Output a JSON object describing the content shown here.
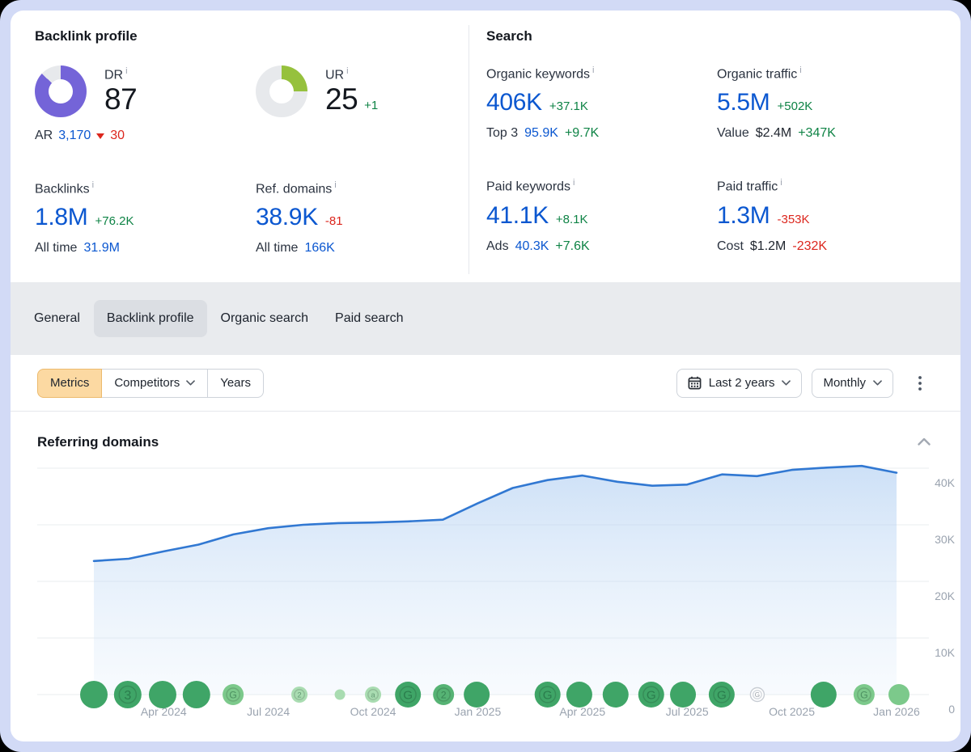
{
  "icons": {
    "info": "i"
  },
  "colors": {
    "donut_purple": "#7464d8",
    "donut_lime": "#96c13d",
    "donut_track": "#e7e9ec",
    "accent_blue": "#0b57d0",
    "positive_green": "#0e8345",
    "negative_red": "#dc261d",
    "peach_active": "#fcd9a2"
  },
  "backlink_profile": {
    "title": "Backlink profile",
    "dr": {
      "label": "DR",
      "value": "87",
      "percent": 87,
      "ar_label": "AR",
      "ar_value": "3,170",
      "ar_change": "30"
    },
    "ur": {
      "label": "UR",
      "value": "25",
      "percent": 25,
      "change": "+1"
    },
    "backlinks": {
      "label": "Backlinks",
      "value": "1.8M",
      "change": "+76.2K",
      "sub_label": "All time",
      "sub_value": "31.9M"
    },
    "ref_domains": {
      "label": "Ref. domains",
      "value": "38.9K",
      "change": "-81",
      "sub_label": "All time",
      "sub_value": "166K"
    }
  },
  "search": {
    "title": "Search",
    "organic_keywords": {
      "label": "Organic keywords",
      "value": "406K",
      "change": "+37.1K",
      "sub_label": "Top 3",
      "sub_value": "95.9K",
      "sub_change": "+9.7K"
    },
    "organic_traffic": {
      "label": "Organic traffic",
      "value": "5.5M",
      "change": "+502K",
      "sub_label": "Value",
      "sub_value": "$2.4M",
      "sub_change": "+347K"
    },
    "paid_keywords": {
      "label": "Paid keywords",
      "value": "41.1K",
      "change": "+8.1K",
      "sub_label": "Ads",
      "sub_value": "40.3K",
      "sub_change": "+7.6K"
    },
    "paid_traffic": {
      "label": "Paid traffic",
      "value": "1.3M",
      "change": "-353K",
      "sub_label": "Cost",
      "sub_value": "$1.2M",
      "sub_change": "-232K"
    }
  },
  "tabs": [
    {
      "label": "General",
      "active": false
    },
    {
      "label": "Backlink profile",
      "active": true
    },
    {
      "label": "Organic search",
      "active": false
    },
    {
      "label": "Paid search",
      "active": false
    }
  ],
  "toolbar": {
    "segments": [
      {
        "label": "Metrics",
        "active": true
      },
      {
        "label": "Competitors",
        "has_dropdown": true
      },
      {
        "label": "Years"
      }
    ],
    "date_range": "Last 2 years",
    "granularity": "Monthly"
  },
  "chart_data": {
    "type": "area",
    "title": "Referring domains",
    "grid": "horizontal",
    "legend": "none",
    "months": [
      "Feb 2024",
      "Mar 2024",
      "Apr 2024",
      "May 2024",
      "Jun 2024",
      "Jul 2024",
      "Aug 2024",
      "Sep 2024",
      "Oct 2024",
      "Nov 2024",
      "Dec 2024",
      "Jan 2025",
      "Feb 2025",
      "Mar 2025",
      "Apr 2025",
      "May 2025",
      "Jun 2025",
      "Jul 2025",
      "Aug 2025",
      "Sep 2025",
      "Oct 2025",
      "Nov 2025",
      "Dec 2025",
      "Jan 2026"
    ],
    "values": [
      23600,
      24000,
      25300,
      26500,
      28300,
      29400,
      30000,
      30300,
      30400,
      30600,
      30900,
      33800,
      36500,
      37900,
      38700,
      37600,
      36900,
      37100,
      38900,
      38600,
      39700,
      40100,
      40400,
      39200
    ],
    "ylim": [
      0,
      42000
    ],
    "yticks": [
      {
        "value": 0,
        "label": "0"
      },
      {
        "value": 10000,
        "label": "10K"
      },
      {
        "value": 20000,
        "label": "20K"
      },
      {
        "value": 30000,
        "label": "30K"
      },
      {
        "value": 40000,
        "label": "40K"
      }
    ],
    "xticks": [
      {
        "month_index": 2,
        "label": "Apr 2024"
      },
      {
        "month_index": 5,
        "label": "Jul 2024"
      },
      {
        "month_index": 8,
        "label": "Oct 2024"
      },
      {
        "month_index": 11,
        "label": "Jan 2025"
      },
      {
        "month_index": 14,
        "label": "Apr 2025"
      },
      {
        "month_index": 17,
        "label": "Jul 2025"
      },
      {
        "month_index": 20,
        "label": "Oct 2025"
      },
      {
        "month_index": 23,
        "label": "Jan 2026"
      }
    ],
    "line_color": "#3178d2",
    "area_top": "rgba(164,199,240,0.55)",
    "area_bottom": "rgba(226,238,250,0.25)",
    "grid_color": "#e9ecef",
    "axis_text_color": "#9aa3af",
    "marker_colors": {
      "dark": "#3fa567",
      "mid": "#56b374",
      "light": "#7cc98b",
      "pale": "#a9dcb1",
      "outline_bg": "#ffffff",
      "outline_border": "#c8cdd4",
      "glyph_green": "rgba(17,75,44,0.45)",
      "glyph_gray": "#949ba3",
      "ring_green": "rgba(0,0,0,0.14)",
      "ring_gray": "#d7dbe0"
    },
    "markers": [
      {
        "t": 0,
        "size": "xl",
        "tone": "dark",
        "glyph": ""
      },
      {
        "t": 0.97,
        "size": "xl",
        "tone": "dark",
        "glyph": "3"
      },
      {
        "t": 1.97,
        "size": "xl",
        "tone": "dark",
        "glyph": ""
      },
      {
        "t": 2.94,
        "size": "xl",
        "tone": "dark",
        "glyph": ""
      },
      {
        "t": 3.99,
        "size": "md",
        "tone": "light",
        "glyph": "G"
      },
      {
        "t": 5.89,
        "size": "sm",
        "tone": "pale",
        "glyph": "2"
      },
      {
        "t": 7.05,
        "size": "xs",
        "tone": "pale",
        "glyph": ""
      },
      {
        "t": 8.0,
        "size": "sm",
        "tone": "pale",
        "glyph": "a"
      },
      {
        "t": 9.0,
        "size": "lg",
        "tone": "dark",
        "glyph": "G"
      },
      {
        "t": 10.02,
        "size": "md",
        "tone": "mid",
        "glyph": "2"
      },
      {
        "t": 10.97,
        "size": "lg",
        "tone": "dark",
        "glyph": ""
      },
      {
        "t": 13.0,
        "size": "lg",
        "tone": "dark",
        "glyph": "G"
      },
      {
        "t": 13.91,
        "size": "lg",
        "tone": "dark",
        "glyph": ""
      },
      {
        "t": 14.95,
        "size": "lg",
        "tone": "dark",
        "glyph": ""
      },
      {
        "t": 15.97,
        "size": "lg",
        "tone": "dark",
        "glyph": "G"
      },
      {
        "t": 16.88,
        "size": "lg",
        "tone": "dark",
        "glyph": ""
      },
      {
        "t": 17.99,
        "size": "lg",
        "tone": "dark",
        "glyph": "G"
      },
      {
        "t": 19.01,
        "size": "ol",
        "tone": "outline",
        "glyph": "G"
      },
      {
        "t": 20.91,
        "size": "lg",
        "tone": "dark",
        "glyph": ""
      },
      {
        "t": 22.07,
        "size": "md",
        "tone": "light",
        "glyph": "G"
      },
      {
        "t": 23.07,
        "size": "md",
        "tone": "light",
        "glyph": ""
      }
    ]
  }
}
